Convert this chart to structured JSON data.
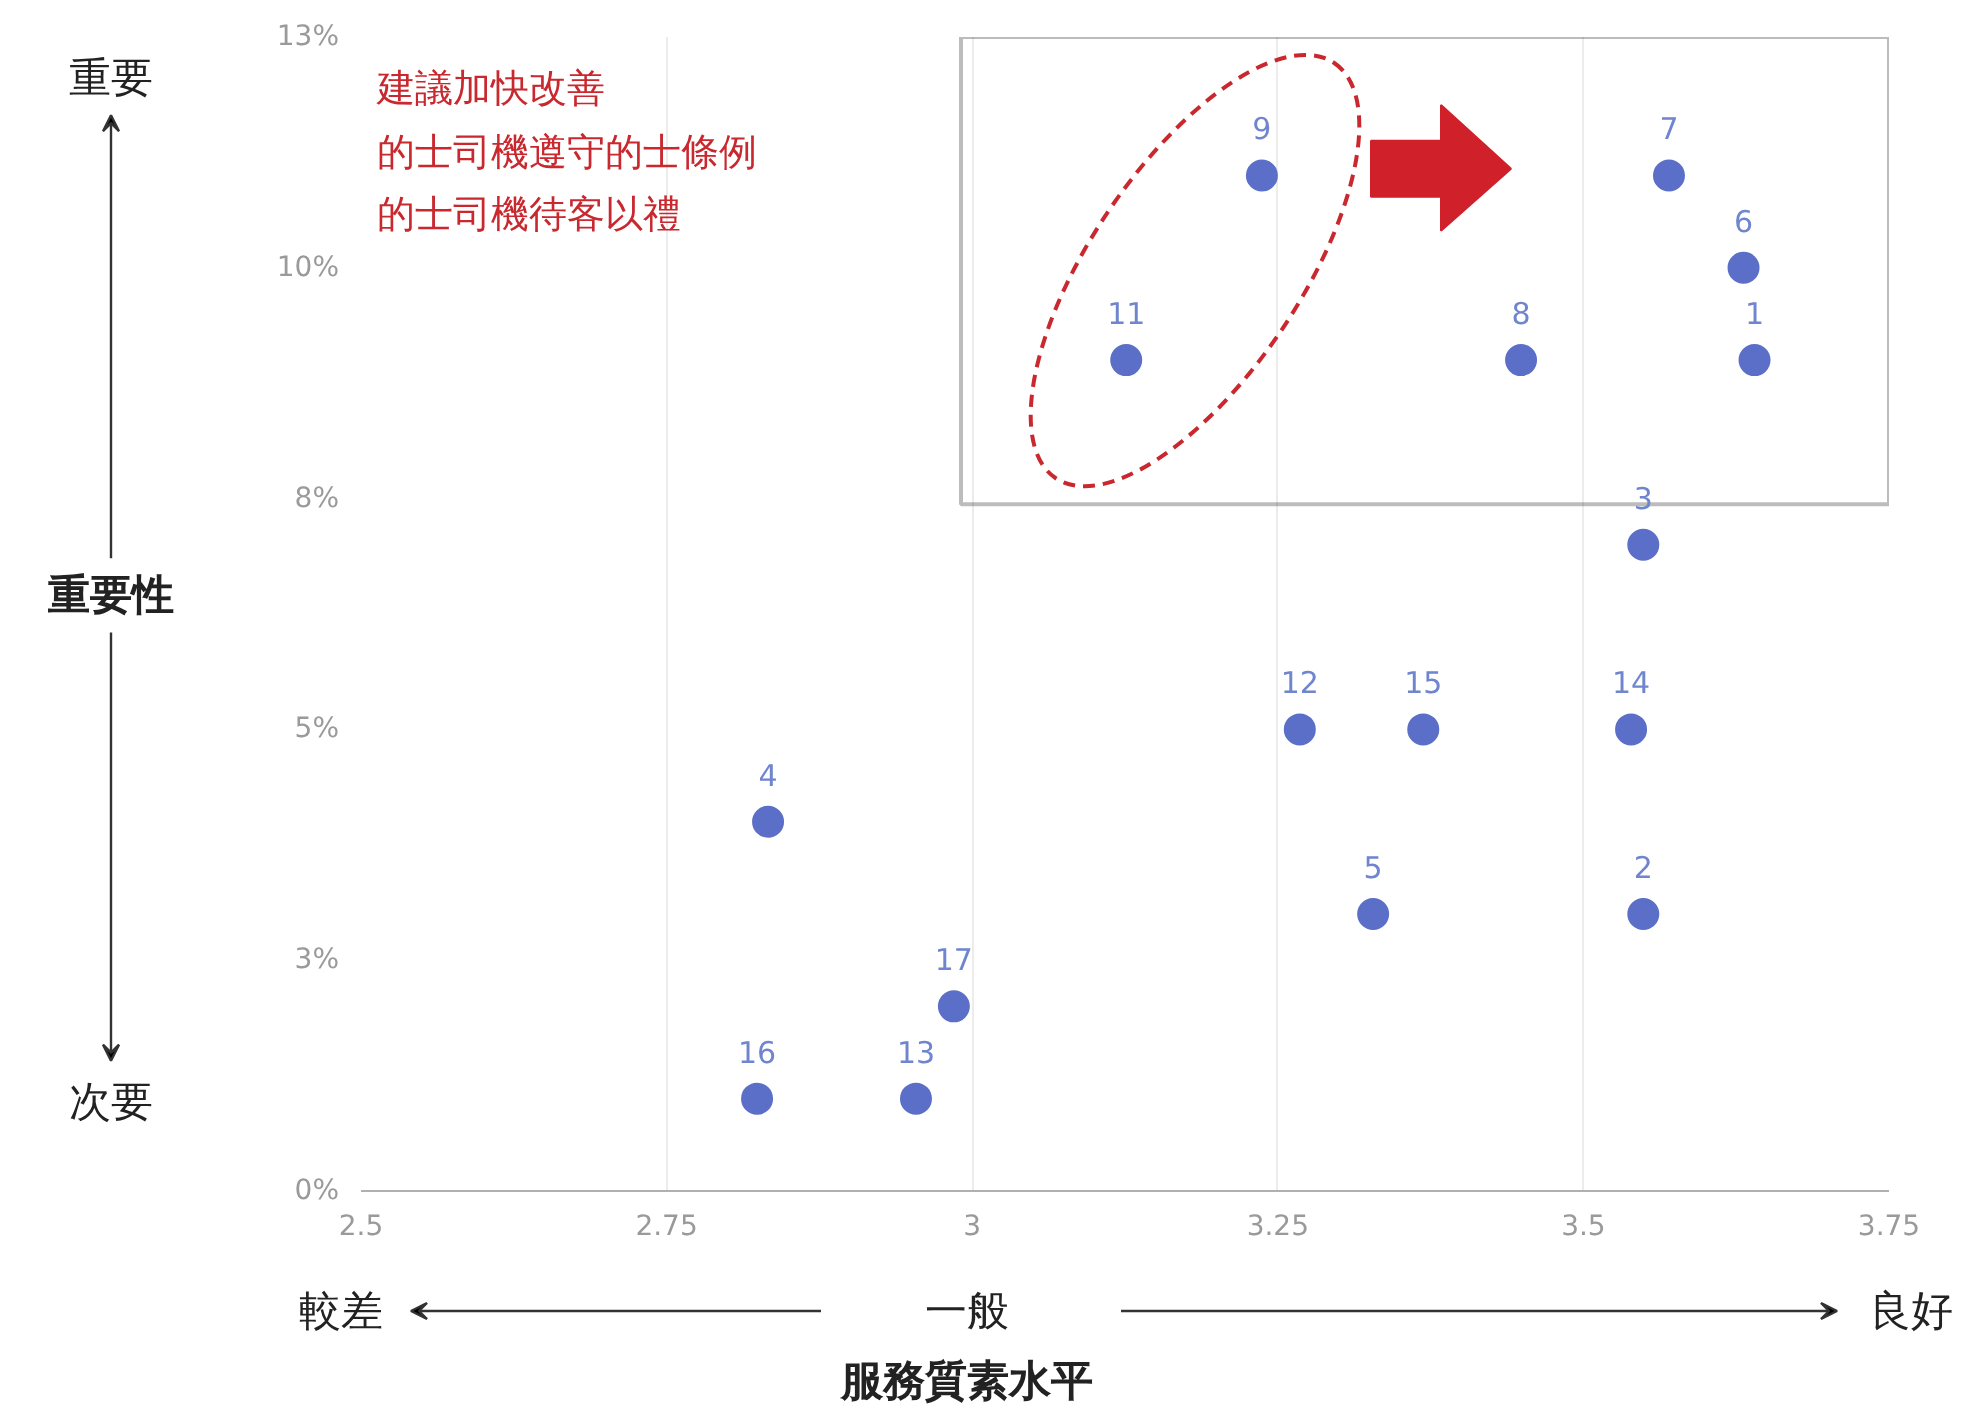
{
  "chart_data": {
    "type": "scatter",
    "xlabel": "服務質素水平",
    "ylabel": "重要性",
    "x": [
      3.64,
      3.549,
      3.549,
      2.833,
      3.328,
      3.631,
      3.57,
      3.449,
      3.237,
      3.126,
      3.268,
      2.954,
      3.539,
      3.369,
      2.824,
      2.985
    ],
    "values": [
      9.0,
      3.0,
      7.0,
      4.0,
      3.0,
      10.0,
      11.0,
      9.0,
      11.0,
      9.0,
      5.0,
      1.0,
      5.0,
      5.0,
      1.0,
      2.0
    ],
    "color": "#5b6fc8",
    "marker": "circle",
    "grid": "x",
    "xlim": [
      2.5,
      3.75
    ],
    "xticks": [
      2.5,
      2.75,
      3,
      3.25,
      3.5,
      3.75
    ],
    "ylim": [
      0,
      12.5
    ],
    "yticks": [
      {
        "value": 0,
        "label": "0%"
      },
      {
        "value": 2.5,
        "label": "3%"
      },
      {
        "value": 5,
        "label": "5%"
      },
      {
        "value": 7.5,
        "label": "8%"
      },
      {
        "value": 10,
        "label": "10%"
      },
      {
        "value": 12.5,
        "label": "13%"
      }
    ],
    "annotations": [
      "建議加快改善",
      "的士司機遵守的士條例",
      "的士司機待客以禮",
      "重要",
      "次要",
      "較差",
      "一般",
      "良好",
      {
        "text": "1",
        "x": 3.64,
        "y": 9.0
      },
      {
        "text": "2",
        "x": 3.549,
        "y": 3.0
      },
      {
        "text": "3",
        "x": 3.549,
        "y": 7.0
      },
      {
        "text": "4",
        "x": 2.833,
        "y": 4.0
      },
      {
        "text": "5",
        "x": 3.328,
        "y": 3.0
      },
      {
        "text": "6",
        "x": 3.631,
        "y": 10.0
      },
      {
        "text": "7",
        "x": 3.57,
        "y": 11.0
      },
      {
        "text": "8",
        "x": 3.449,
        "y": 9.0
      },
      {
        "text": "9",
        "x": 3.237,
        "y": 11.0
      },
      {
        "text": "11",
        "x": 3.126,
        "y": 9.0
      },
      {
        "text": "12",
        "x": 3.268,
        "y": 5.0
      },
      {
        "text": "13",
        "x": 2.954,
        "y": 1.0
      },
      {
        "text": "14",
        "x": 3.539,
        "y": 5.0
      },
      {
        "text": "15",
        "x": 3.369,
        "y": 5.0
      },
      {
        "text": "16",
        "x": 2.824,
        "y": 1.0
      },
      {
        "text": "17",
        "x": 2.985,
        "y": 2.0
      }
    ]
  }
}
